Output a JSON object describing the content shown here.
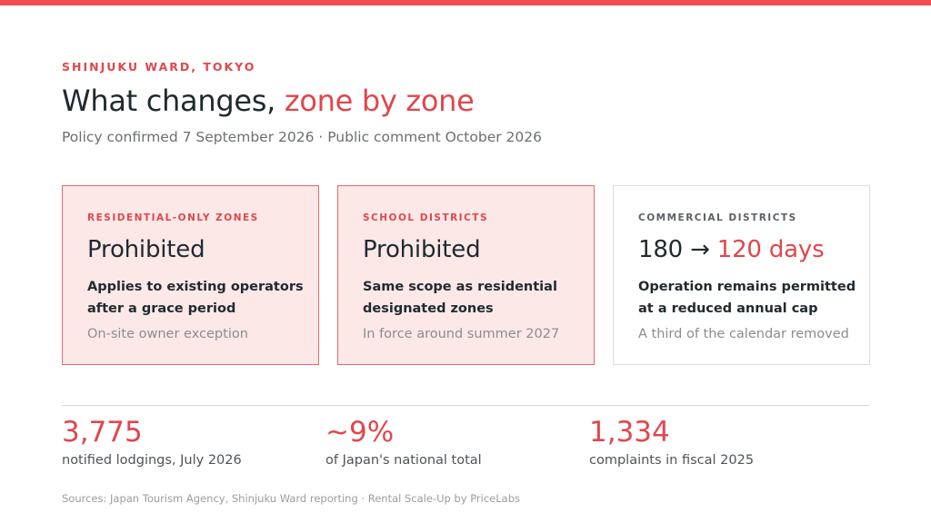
{
  "header": {
    "eyebrow": "SHINJUKU WARD, TOKYO",
    "title_main": "What changes, ",
    "title_accent": "zone by zone",
    "subtitle": "Policy confirmed 7 September 2026 · Public comment October 2026"
  },
  "cards": [
    {
      "label": "RESIDENTIAL-ONLY ZONES",
      "headline": "Prohibited",
      "description": "Applies to existing operators after a grace period",
      "note": "On-site owner exception"
    },
    {
      "label": "SCHOOL DISTRICTS",
      "headline": "Prohibited",
      "description": "Same scope as residential designated zones",
      "note": "In force around summer 2027"
    },
    {
      "label": "COMMERCIAL DISTRICTS",
      "headline_main": "180 → ",
      "headline_accent": "120 days",
      "description": "Operation remains permitted at a reduced annual cap",
      "note": "A third of the calendar removed"
    }
  ],
  "stats": [
    {
      "value": "3,775",
      "caption": "notified lodgings, July 2026"
    },
    {
      "value": "~9%",
      "caption": "of Japan's national total"
    },
    {
      "value": "1,334",
      "caption": "complaints in fiscal 2025"
    }
  ],
  "footer": {
    "sources": "Sources: Japan Tourism Agency, Shinjuku Ward reporting · Rental Scale-Up by PriceLabs"
  },
  "colors": {
    "accent": "#e0474c",
    "top_bar": "#f04e4e",
    "highlight_card_bg": "#fde8e8",
    "text_dark": "#1f2a30"
  }
}
